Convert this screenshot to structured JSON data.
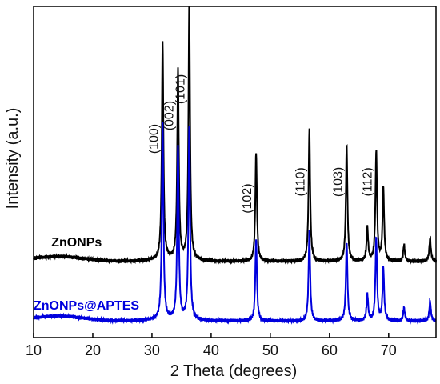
{
  "chart_data": {
    "type": "line",
    "title": "",
    "xlabel": "2 Theta (degrees)",
    "ylabel": "Intensity (a.u.)",
    "xlim": [
      10,
      78
    ],
    "ylim": [
      0,
      100
    ],
    "x_ticks": [
      10,
      20,
      30,
      40,
      50,
      60,
      70
    ],
    "y_ticks_shown": false,
    "grid": false,
    "peak_labels": [
      {
        "label": "(100)",
        "x": 31.8
      },
      {
        "label": "(002)",
        "x": 34.4
      },
      {
        "label": "(101)",
        "x": 36.3
      },
      {
        "label": "(102)",
        "x": 47.6
      },
      {
        "label": "(110)",
        "x": 56.6
      },
      {
        "label": "(103)",
        "x": 62.9
      },
      {
        "label": "(112)",
        "x": 67.9
      }
    ],
    "series": [
      {
        "name": "ZnONPs",
        "color": "#000000",
        "baseline": 23,
        "offset_x_label": 13,
        "peaks": [
          {
            "x": 31.8,
            "h": 66
          },
          {
            "x": 34.4,
            "h": 57
          },
          {
            "x": 36.3,
            "h": 77
          },
          {
            "x": 47.6,
            "h": 33
          },
          {
            "x": 56.6,
            "h": 40
          },
          {
            "x": 62.9,
            "h": 35
          },
          {
            "x": 66.4,
            "h": 10
          },
          {
            "x": 67.9,
            "h": 33
          },
          {
            "x": 69.1,
            "h": 22
          },
          {
            "x": 72.6,
            "h": 5
          },
          {
            "x": 77.0,
            "h": 7
          }
        ]
      },
      {
        "name": "ZnONPs@APTES",
        "color": "#0000dd",
        "baseline": 5,
        "offset_x_label": 10,
        "peaks": [
          {
            "x": 31.8,
            "h": 59
          },
          {
            "x": 34.4,
            "h": 52
          },
          {
            "x": 36.3,
            "h": 59
          },
          {
            "x": 47.6,
            "h": 25
          },
          {
            "x": 56.6,
            "h": 27
          },
          {
            "x": 62.9,
            "h": 24
          },
          {
            "x": 66.4,
            "h": 8
          },
          {
            "x": 67.9,
            "h": 25
          },
          {
            "x": 69.1,
            "h": 16
          },
          {
            "x": 72.6,
            "h": 4
          },
          {
            "x": 77.0,
            "h": 6
          }
        ]
      }
    ]
  }
}
